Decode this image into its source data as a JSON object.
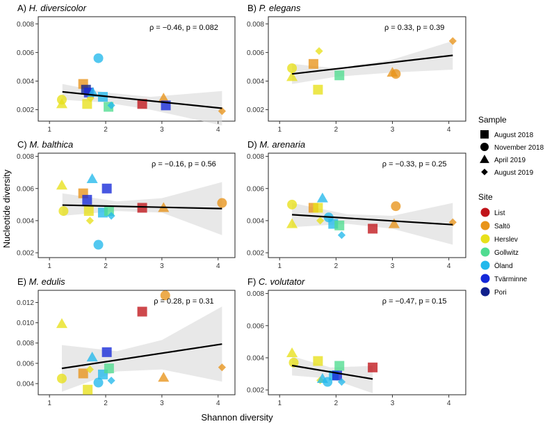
{
  "colors": {
    "List": "#c0141a",
    "Saltö": "#e8941a",
    "Herslev": "#e8e01a",
    "Gollwitz": "#4fdc90",
    "Öland": "#22b8ec",
    "Tvärminne": "#1428d8",
    "Pori": "#10208c"
  },
  "chart_data": {
    "type": "scatter",
    "xlabel": "Shannon diversity",
    "ylabel": "Nucleotide diversity",
    "legend": {
      "sample_title": "Sample",
      "sample_items": [
        {
          "label": "August 2018",
          "shape": "square"
        },
        {
          "label": "November 2018",
          "shape": "circle"
        },
        {
          "label": "April 2019",
          "shape": "triangle"
        },
        {
          "label": "August 2019",
          "shape": "diamond"
        }
      ],
      "site_title": "Site",
      "site_items": [
        "List",
        "Saltö",
        "Herslev",
        "Gollwitz",
        "Öland",
        "Tvärminne",
        "Pori"
      ]
    },
    "panels": [
      {
        "letter": "A)",
        "species": "H. diversicolor",
        "stat": "ρ = −0.46, p = 0.082",
        "xlim": [
          0.8,
          4.3
        ],
        "ylim": [
          0.0012,
          0.0085
        ],
        "xticks": [
          "1",
          "2",
          "3",
          "4"
        ],
        "xtick_vals": [
          1,
          2,
          3,
          4
        ],
        "yticks": [
          "0.002",
          "0.004",
          "0.006",
          "0.008"
        ],
        "ytick_vals": [
          0.002,
          0.004,
          0.006,
          0.008
        ],
        "fit": [
          [
            1.23,
            0.00325
          ],
          [
            4.07,
            0.0021
          ]
        ],
        "band": [
          [
            1.23,
            0.0038,
            0.0027
          ],
          [
            2.0,
            0.0032,
            0.0025
          ],
          [
            2.8,
            0.0029,
            0.002
          ],
          [
            4.07,
            0.0033,
            0.0009
          ]
        ],
        "points": [
          {
            "x": 1.22,
            "y": 0.0027,
            "shape": "circle",
            "site": "Herslev"
          },
          {
            "x": 1.22,
            "y": 0.0024,
            "shape": "triangle",
            "site": "Herslev"
          },
          {
            "x": 1.6,
            "y": 0.0038,
            "shape": "square",
            "site": "Saltö"
          },
          {
            "x": 1.65,
            "y": 0.0034,
            "shape": "square",
            "site": "Pori"
          },
          {
            "x": 1.7,
            "y": 0.0032,
            "shape": "square",
            "site": "Tvärminne"
          },
          {
            "x": 1.67,
            "y": 0.0024,
            "shape": "square",
            "site": "Herslev"
          },
          {
            "x": 1.73,
            "y": 0.0028,
            "shape": "diamond",
            "site": "Herslev"
          },
          {
            "x": 1.77,
            "y": 0.0032,
            "shape": "triangle",
            "site": "Öland"
          },
          {
            "x": 1.87,
            "y": 0.0056,
            "shape": "circle",
            "site": "Öland"
          },
          {
            "x": 1.95,
            "y": 0.0029,
            "shape": "square",
            "site": "Öland"
          },
          {
            "x": 2.05,
            "y": 0.0022,
            "shape": "square",
            "site": "Gollwitz"
          },
          {
            "x": 2.1,
            "y": 0.0023,
            "shape": "diamond",
            "site": "Öland"
          },
          {
            "x": 2.65,
            "y": 0.0024,
            "shape": "square",
            "site": "List"
          },
          {
            "x": 3.03,
            "y": 0.0028,
            "shape": "triangle",
            "site": "Saltö"
          },
          {
            "x": 3.07,
            "y": 0.0023,
            "shape": "square",
            "site": "Tvärminne"
          },
          {
            "x": 4.07,
            "y": 0.0019,
            "shape": "diamond",
            "site": "Saltö"
          }
        ]
      },
      {
        "letter": "B)",
        "species": "P. elegans",
        "stat": "ρ = 0.33, p = 0.39",
        "xlim": [
          0.8,
          4.3
        ],
        "ylim": [
          0.0012,
          0.0085
        ],
        "xticks": [
          "1",
          "2",
          "3",
          "4"
        ],
        "xtick_vals": [
          1,
          2,
          3,
          4
        ],
        "yticks": [
          "0.002",
          "0.004",
          "0.006",
          "0.008"
        ],
        "ytick_vals": [
          0.002,
          0.004,
          0.006,
          0.008
        ],
        "fit": [
          [
            1.22,
            0.0045
          ],
          [
            4.07,
            0.0058
          ]
        ],
        "band": [
          [
            1.22,
            0.0052,
            0.0038
          ],
          [
            2.0,
            0.0049,
            0.0043
          ],
          [
            3.0,
            0.0055,
            0.0046
          ],
          [
            4.07,
            0.0068,
            0.0048
          ]
        ],
        "points": [
          {
            "x": 1.22,
            "y": 0.0049,
            "shape": "circle",
            "site": "Herslev"
          },
          {
            "x": 1.22,
            "y": 0.0043,
            "shape": "triangle",
            "site": "Herslev"
          },
          {
            "x": 1.6,
            "y": 0.0052,
            "shape": "square",
            "site": "Saltö"
          },
          {
            "x": 1.7,
            "y": 0.0061,
            "shape": "diamond",
            "site": "Herslev"
          },
          {
            "x": 1.68,
            "y": 0.0034,
            "shape": "square",
            "site": "Herslev"
          },
          {
            "x": 2.06,
            "y": 0.0044,
            "shape": "square",
            "site": "Gollwitz"
          },
          {
            "x": 3.0,
            "y": 0.0046,
            "shape": "triangle",
            "site": "Saltö"
          },
          {
            "x": 3.06,
            "y": 0.0045,
            "shape": "circle",
            "site": "Saltö"
          },
          {
            "x": 4.07,
            "y": 0.0068,
            "shape": "diamond",
            "site": "Saltö"
          }
        ]
      },
      {
        "letter": "C)",
        "species": "M. balthica",
        "stat": "ρ = −0.16, p = 0.56",
        "xlim": [
          0.8,
          4.3
        ],
        "ylim": [
          0.0017,
          0.0082
        ],
        "xticks": [
          "1",
          "2",
          "3",
          "4"
        ],
        "xtick_vals": [
          1,
          2,
          3,
          4
        ],
        "yticks": [
          "0.002",
          "0.004",
          "0.006",
          "0.008"
        ],
        "ytick_vals": [
          0.002,
          0.004,
          0.006,
          0.008
        ],
        "fit": [
          [
            1.23,
            0.00497
          ],
          [
            4.07,
            0.00475
          ]
        ],
        "band": [
          [
            1.23,
            0.0057,
            0.0043
          ],
          [
            2.2,
            0.0052,
            0.0046
          ],
          [
            3.0,
            0.0054,
            0.0045
          ],
          [
            4.07,
            0.0064,
            0.0031
          ]
        ],
        "points": [
          {
            "x": 1.22,
            "y": 0.0062,
            "shape": "triangle",
            "site": "Herslev"
          },
          {
            "x": 1.25,
            "y": 0.0046,
            "shape": "circle",
            "site": "Herslev"
          },
          {
            "x": 1.6,
            "y": 0.0057,
            "shape": "square",
            "site": "Saltö"
          },
          {
            "x": 1.67,
            "y": 0.0053,
            "shape": "square",
            "site": "Tvärminne"
          },
          {
            "x": 1.7,
            "y": 0.0046,
            "shape": "square",
            "site": "Herslev"
          },
          {
            "x": 1.72,
            "y": 0.004,
            "shape": "diamond",
            "site": "Herslev"
          },
          {
            "x": 1.76,
            "y": 0.0066,
            "shape": "triangle",
            "site": "Öland"
          },
          {
            "x": 1.87,
            "y": 0.0025,
            "shape": "circle",
            "site": "Öland"
          },
          {
            "x": 1.95,
            "y": 0.0045,
            "shape": "square",
            "site": "Öland"
          },
          {
            "x": 2.02,
            "y": 0.006,
            "shape": "square",
            "site": "Tvärminne"
          },
          {
            "x": 2.06,
            "y": 0.0046,
            "shape": "square",
            "site": "Gollwitz"
          },
          {
            "x": 2.1,
            "y": 0.0043,
            "shape": "diamond",
            "site": "Öland"
          },
          {
            "x": 2.65,
            "y": 0.0048,
            "shape": "square",
            "site": "List"
          },
          {
            "x": 3.03,
            "y": 0.0048,
            "shape": "triangle",
            "site": "Saltö"
          },
          {
            "x": 4.07,
            "y": 0.0051,
            "shape": "circle",
            "site": "Saltö"
          }
        ]
      },
      {
        "letter": "D)",
        "species": "M. arenaria",
        "stat": "ρ = −0.33, p = 0.25",
        "xlim": [
          0.8,
          4.3
        ],
        "ylim": [
          0.0017,
          0.0082
        ],
        "xticks": [
          "1",
          "2",
          "3",
          "4"
        ],
        "xtick_vals": [
          1,
          2,
          3,
          4
        ],
        "yticks": [
          "0.002",
          "0.004",
          "0.006",
          "0.008"
        ],
        "ytick_vals": [
          0.002,
          0.004,
          0.006,
          0.008
        ],
        "fit": [
          [
            1.22,
            0.00437
          ],
          [
            4.07,
            0.00375
          ]
        ],
        "band": [
          [
            1.22,
            0.0051,
            0.0036
          ],
          [
            2.2,
            0.0044,
            0.0038
          ],
          [
            3.0,
            0.0043,
            0.0035
          ],
          [
            4.07,
            0.0051,
            0.0025
          ]
        ],
        "points": [
          {
            "x": 1.22,
            "y": 0.005,
            "shape": "circle",
            "site": "Herslev"
          },
          {
            "x": 1.22,
            "y": 0.0038,
            "shape": "triangle",
            "site": "Herslev"
          },
          {
            "x": 1.6,
            "y": 0.0048,
            "shape": "square",
            "site": "Saltö"
          },
          {
            "x": 1.68,
            "y": 0.0048,
            "shape": "square",
            "site": "Herslev"
          },
          {
            "x": 1.72,
            "y": 0.004,
            "shape": "diamond",
            "site": "Herslev"
          },
          {
            "x": 1.76,
            "y": 0.0054,
            "shape": "triangle",
            "site": "Öland"
          },
          {
            "x": 1.87,
            "y": 0.0042,
            "shape": "circle",
            "site": "Öland"
          },
          {
            "x": 1.95,
            "y": 0.0038,
            "shape": "square",
            "site": "Öland"
          },
          {
            "x": 2.06,
            "y": 0.0037,
            "shape": "square",
            "site": "Gollwitz"
          },
          {
            "x": 2.1,
            "y": 0.0031,
            "shape": "diamond",
            "site": "Öland"
          },
          {
            "x": 2.65,
            "y": 0.0035,
            "shape": "square",
            "site": "List"
          },
          {
            "x": 3.03,
            "y": 0.0038,
            "shape": "triangle",
            "site": "Saltö"
          },
          {
            "x": 3.06,
            "y": 0.0049,
            "shape": "circle",
            "site": "Saltö"
          },
          {
            "x": 4.07,
            "y": 0.0039,
            "shape": "diamond",
            "site": "Saltö"
          }
        ]
      },
      {
        "letter": "E)",
        "species": "M. edulis",
        "stat": "ρ = 0.28, p = 0.31",
        "xlim": [
          0.8,
          4.3
        ],
        "ylim": [
          0.0029,
          0.0132
        ],
        "xticks": [
          "1",
          "2",
          "3",
          "4"
        ],
        "xtick_vals": [
          1,
          2,
          3,
          4
        ],
        "yticks": [
          "0.004",
          "0.006",
          "0.008",
          "0.010",
          "0.012"
        ],
        "ytick_vals": [
          0.004,
          0.006,
          0.008,
          0.01,
          0.012
        ],
        "fit": [
          [
            1.22,
            0.0055
          ],
          [
            4.07,
            0.0079
          ]
        ],
        "band": [
          [
            1.22,
            0.0078,
            0.0032
          ],
          [
            2.2,
            0.0072,
            0.0052
          ],
          [
            3.0,
            0.0083,
            0.0054
          ],
          [
            4.07,
            0.0116,
            0.0042
          ]
        ],
        "points": [
          {
            "x": 1.22,
            "y": 0.0099,
            "shape": "triangle",
            "site": "Herslev"
          },
          {
            "x": 1.22,
            "y": 0.0045,
            "shape": "circle",
            "site": "Herslev"
          },
          {
            "x": 1.6,
            "y": 0.005,
            "shape": "square",
            "site": "Saltö"
          },
          {
            "x": 1.68,
            "y": 0.0034,
            "shape": "square",
            "site": "Herslev"
          },
          {
            "x": 1.72,
            "y": 0.0054,
            "shape": "diamond",
            "site": "Herslev"
          },
          {
            "x": 1.76,
            "y": 0.0066,
            "shape": "triangle",
            "site": "Öland"
          },
          {
            "x": 1.87,
            "y": 0.0041,
            "shape": "circle",
            "site": "Öland"
          },
          {
            "x": 1.95,
            "y": 0.0049,
            "shape": "square",
            "site": "Öland"
          },
          {
            "x": 2.02,
            "y": 0.0071,
            "shape": "square",
            "site": "Tvärminne"
          },
          {
            "x": 2.06,
            "y": 0.0055,
            "shape": "square",
            "site": "Gollwitz"
          },
          {
            "x": 2.1,
            "y": 0.0043,
            "shape": "diamond",
            "site": "Öland"
          },
          {
            "x": 2.65,
            "y": 0.0111,
            "shape": "square",
            "site": "List"
          },
          {
            "x": 3.03,
            "y": 0.0046,
            "shape": "triangle",
            "site": "Saltö"
          },
          {
            "x": 3.06,
            "y": 0.0127,
            "shape": "circle",
            "site": "Saltö"
          },
          {
            "x": 4.07,
            "y": 0.0056,
            "shape": "diamond",
            "site": "Saltö"
          }
        ]
      },
      {
        "letter": "F)",
        "species": "C. volutator",
        "stat": "ρ = −0.47, p = 0.15",
        "xlim": [
          0.8,
          4.3
        ],
        "ylim": [
          0.0017,
          0.0082
        ],
        "xticks": [
          "1",
          "2",
          "3",
          "4"
        ],
        "xtick_vals": [
          1,
          2,
          3,
          4
        ],
        "yticks": [
          "0.002",
          "0.004",
          "0.006",
          "0.008"
        ],
        "ytick_vals": [
          0.002,
          0.004,
          0.006,
          0.008
        ],
        "fit": [
          [
            1.22,
            0.00352
          ],
          [
            2.65,
            0.00268
          ]
        ],
        "band": [
          [
            1.22,
            0.0041,
            0.0029
          ],
          [
            1.9,
            0.0034,
            0.0027
          ],
          [
            2.65,
            0.0035,
            0.0018
          ]
        ],
        "points": [
          {
            "x": 1.22,
            "y": 0.0043,
            "shape": "triangle",
            "site": "Herslev"
          },
          {
            "x": 1.25,
            "y": 0.0037,
            "shape": "circle",
            "site": "Herslev"
          },
          {
            "x": 1.68,
            "y": 0.0038,
            "shape": "square",
            "site": "Herslev"
          },
          {
            "x": 1.72,
            "y": 0.0026,
            "shape": "diamond",
            "site": "Herslev"
          },
          {
            "x": 1.76,
            "y": 0.0027,
            "shape": "triangle",
            "site": "Öland"
          },
          {
            "x": 1.85,
            "y": 0.0025,
            "shape": "circle",
            "site": "Öland"
          },
          {
            "x": 1.96,
            "y": 0.0029,
            "shape": "square",
            "site": "Öland"
          },
          {
            "x": 2.02,
            "y": 0.0029,
            "shape": "square",
            "site": "Tvärminne"
          },
          {
            "x": 2.06,
            "y": 0.0035,
            "shape": "square",
            "site": "Gollwitz"
          },
          {
            "x": 2.1,
            "y": 0.0025,
            "shape": "diamond",
            "site": "Öland"
          },
          {
            "x": 2.65,
            "y": 0.0034,
            "shape": "square",
            "site": "List"
          }
        ]
      }
    ]
  }
}
